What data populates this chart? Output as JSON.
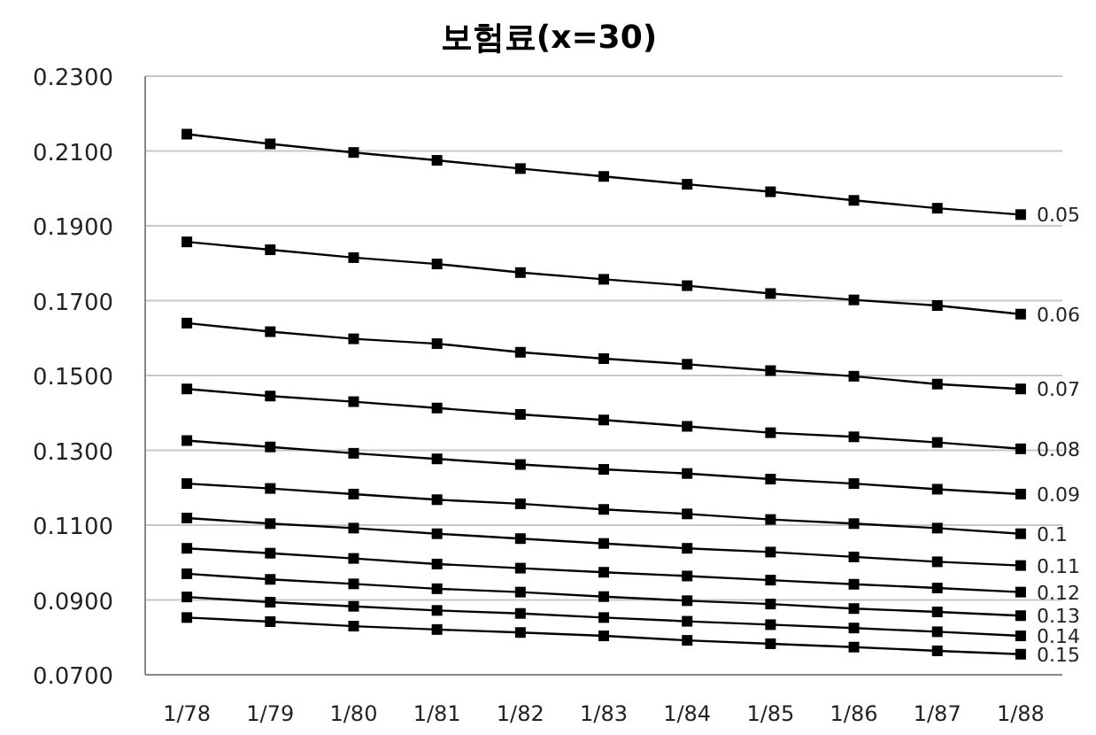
{
  "chart_data": {
    "type": "line",
    "title": "보험료(x=30)",
    "categories": [
      "1/78",
      "1/79",
      "1/80",
      "1/81",
      "1/82",
      "1/83",
      "1/84",
      "1/85",
      "1/86",
      "1/87",
      "1/88"
    ],
    "series": [
      {
        "name": "0.05",
        "color": "#000000",
        "values": [
          0.2145,
          0.2119,
          0.2096,
          0.2075,
          0.2053,
          0.2032,
          0.2011,
          0.1991,
          0.1968,
          0.1947,
          0.193
        ]
      },
      {
        "name": "0.06",
        "color": "#000000",
        "values": [
          0.1857,
          0.1836,
          0.1815,
          0.1798,
          0.1775,
          0.1757,
          0.174,
          0.1719,
          0.1702,
          0.1687,
          0.1664
        ]
      },
      {
        "name": "0.07",
        "color": "#000000",
        "values": [
          0.164,
          0.1617,
          0.1598,
          0.1585,
          0.1562,
          0.1545,
          0.153,
          0.1513,
          0.1498,
          0.1477,
          0.1464
        ]
      },
      {
        "name": "0.08",
        "color": "#000000",
        "values": [
          0.1464,
          0.1445,
          0.143,
          0.1413,
          0.1396,
          0.1381,
          0.1364,
          0.1347,
          0.1336,
          0.1321,
          0.1304
        ]
      },
      {
        "name": "0.09",
        "color": "#000000",
        "values": [
          0.1326,
          0.1309,
          0.1292,
          0.1277,
          0.1262,
          0.1249,
          0.1238,
          0.1223,
          0.1211,
          0.1196,
          0.1183
        ]
      },
      {
        "name": "0.1",
        "color": "#000000",
        "values": [
          0.1211,
          0.1198,
          0.1183,
          0.1168,
          0.1157,
          0.1142,
          0.113,
          0.1115,
          0.1104,
          0.1092,
          0.1077
        ]
      },
      {
        "name": "0.11",
        "color": "#000000",
        "values": [
          0.1119,
          0.1104,
          0.1092,
          0.1077,
          0.1064,
          0.1051,
          0.1038,
          0.1028,
          0.1015,
          0.1002,
          0.0992
        ]
      },
      {
        "name": "0.12",
        "color": "#000000",
        "values": [
          0.1038,
          0.1025,
          0.1011,
          0.0996,
          0.0985,
          0.0974,
          0.0964,
          0.0953,
          0.0942,
          0.0932,
          0.0921
        ]
      },
      {
        "name": "0.13",
        "color": "#000000",
        "values": [
          0.097,
          0.0955,
          0.0943,
          0.093,
          0.0921,
          0.0909,
          0.0898,
          0.0889,
          0.0877,
          0.0868,
          0.0858
        ]
      },
      {
        "name": "0.14",
        "color": "#000000",
        "values": [
          0.0908,
          0.0894,
          0.0883,
          0.0872,
          0.0864,
          0.0853,
          0.0843,
          0.0834,
          0.0825,
          0.0815,
          0.0804
        ]
      },
      {
        "name": "0.15",
        "color": "#000000",
        "values": [
          0.0853,
          0.0842,
          0.083,
          0.0821,
          0.0813,
          0.0804,
          0.0792,
          0.0783,
          0.0774,
          0.0764,
          0.0755
        ]
      }
    ],
    "ylim": [
      0.07,
      0.23
    ],
    "yticks": [
      {
        "value": 0.07,
        "label": "0.0700"
      },
      {
        "value": 0.09,
        "label": "0.0900"
      },
      {
        "value": 0.11,
        "label": "0.1100"
      },
      {
        "value": 0.13,
        "label": "0.1300"
      },
      {
        "value": 0.15,
        "label": "0.1500"
      },
      {
        "value": 0.17,
        "label": "0.1700"
      },
      {
        "value": 0.19,
        "label": "0.1900"
      },
      {
        "value": 0.21,
        "label": "0.2100"
      },
      {
        "value": 0.23,
        "label": "0.2300"
      }
    ],
    "grid": "y",
    "marker": "square",
    "line_style": "solid"
  }
}
